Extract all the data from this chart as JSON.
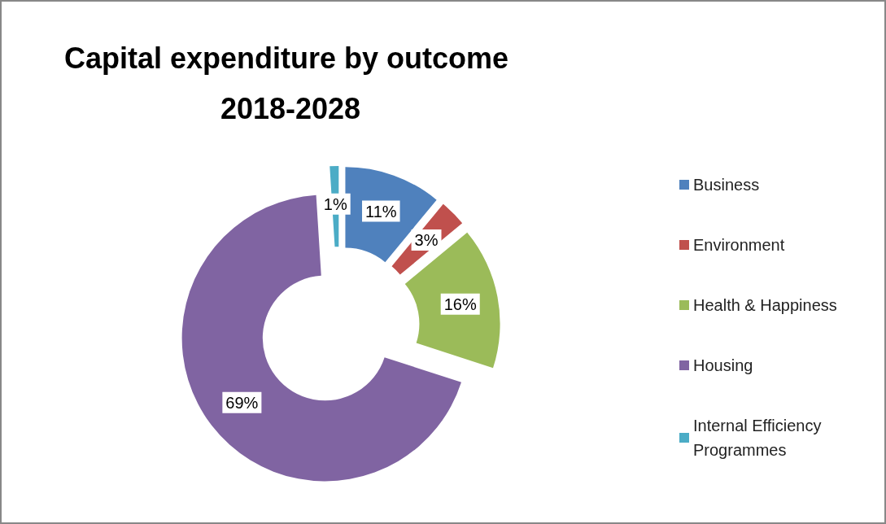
{
  "chart_data": {
    "type": "donut",
    "title": "Capital expenditure by outcome 2018-2028",
    "categories": [
      "Business",
      "Environment",
      "Health & Happiness",
      "Housing",
      "Internal Efficiency Programmes"
    ],
    "values": [
      11,
      3,
      16,
      69,
      1
    ],
    "colors": [
      "#4f81bd",
      "#c0504d",
      "#9bbb59",
      "#8064a2",
      "#4bacc6"
    ],
    "value_labels": [
      "11%",
      "3%",
      "16%",
      "69%",
      "1%"
    ],
    "legend": "right"
  }
}
